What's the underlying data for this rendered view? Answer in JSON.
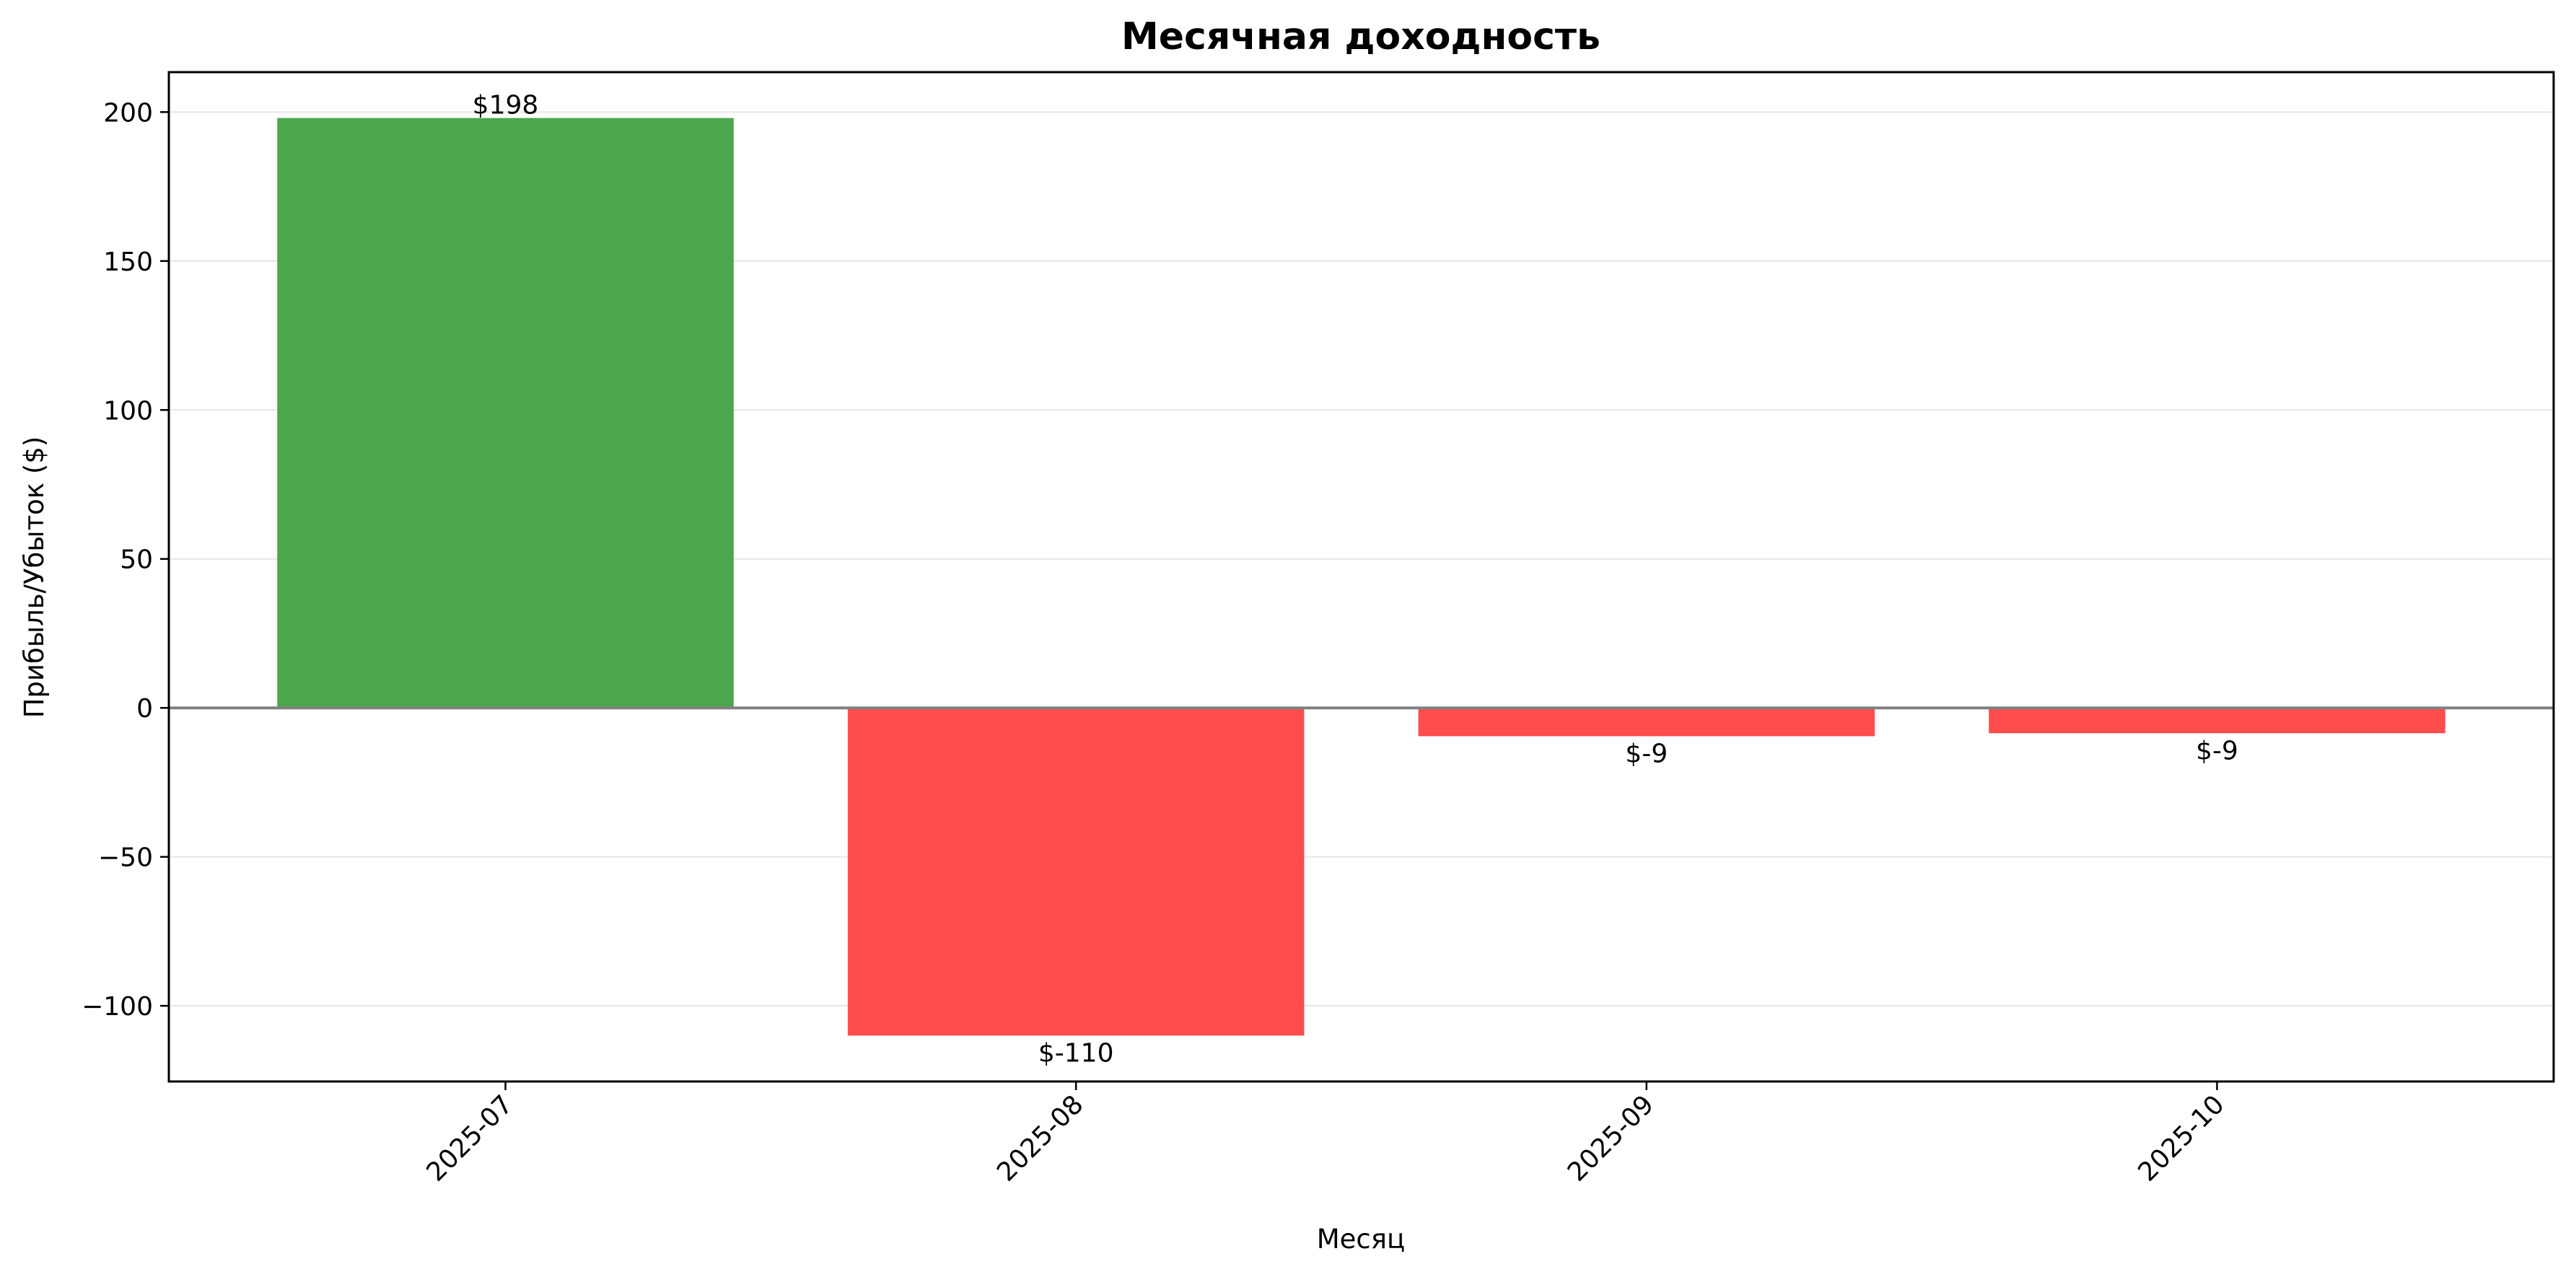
{
  "chart_data": {
    "type": "bar",
    "title": "Месячная доходность",
    "xlabel": "Месяц",
    "ylabel": "Прибыль/Убыток ($)",
    "categories": [
      "2025-07",
      "2025-08",
      "2025-09",
      "2025-10"
    ],
    "values": [
      198,
      -110,
      -9.5,
      -8.5
    ],
    "data_labels": [
      "$198",
      "$-110",
      "$-9",
      "$-9"
    ],
    "ylim": [
      -125.4,
      213.4
    ],
    "yticks": [
      -100,
      -50,
      0,
      50,
      100,
      150,
      200
    ],
    "ytick_labels": [
      "−100",
      "−50",
      "0",
      "50",
      "100",
      "150",
      "200"
    ],
    "grid": "horizontal",
    "zero_line": true,
    "colors": {
      "positive": "#4ca64c",
      "negative": "#ff4c4c",
      "zero_line": "#808080",
      "grid": "#e6e6e6",
      "frame": "#000000"
    }
  }
}
